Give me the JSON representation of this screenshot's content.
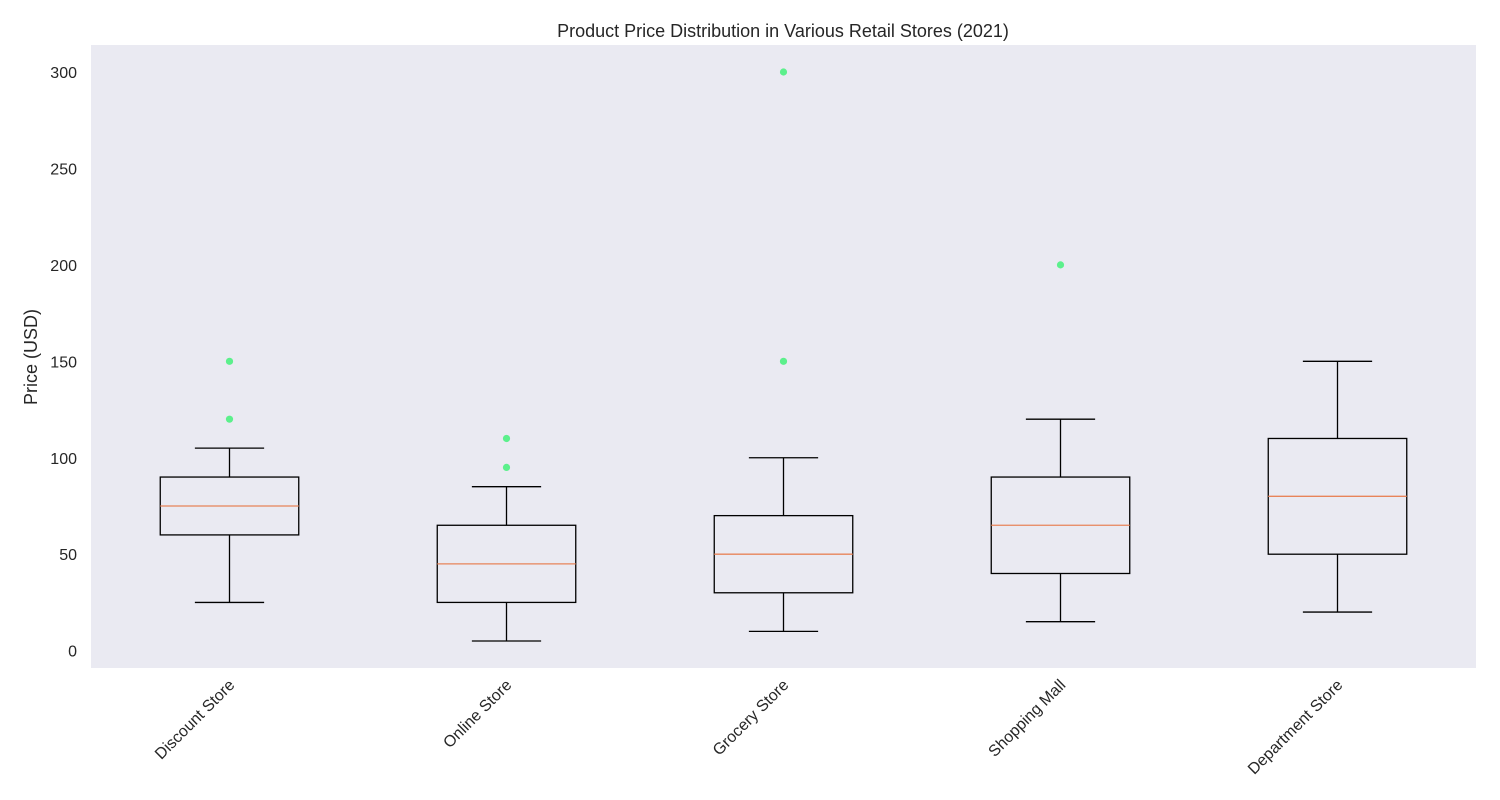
{
  "colors": {
    "plot_background": "#eaeaf2",
    "box_edge": "#000000",
    "median": "#e8845a",
    "outlier": "#5cf08c",
    "text": "#262626"
  },
  "chart_data": {
    "type": "box",
    "title": "Product Price Distribution in Various Retail Stores (2021)",
    "xlabel": "",
    "ylabel": "Price (USD)",
    "ylim": [
      -9,
      314
    ],
    "yticks": [
      0,
      50,
      100,
      150,
      200,
      250,
      300
    ],
    "grid": false,
    "legend": "none",
    "categories": [
      "Discount Store",
      "Online Store",
      "Grocery Store",
      "Shopping Mall",
      "Department Store"
    ],
    "boxes": [
      {
        "category": "Discount Store",
        "whisker_low": 25,
        "q1": 60,
        "median": 75,
        "q3": 90,
        "whisker_high": 105,
        "outliers": [
          120,
          150
        ]
      },
      {
        "category": "Online Store",
        "whisker_low": 5,
        "q1": 25,
        "median": 45,
        "q3": 65,
        "whisker_high": 85,
        "outliers": [
          95,
          110
        ]
      },
      {
        "category": "Grocery Store",
        "whisker_low": 10,
        "q1": 30,
        "median": 50,
        "q3": 70,
        "whisker_high": 100,
        "outliers": [
          150,
          300
        ]
      },
      {
        "category": "Shopping Mall",
        "whisker_low": 15,
        "q1": 40,
        "median": 65,
        "q3": 90,
        "whisker_high": 120,
        "outliers": [
          200
        ]
      },
      {
        "category": "Department Store",
        "whisker_low": 20,
        "q1": 50,
        "median": 80,
        "q3": 110,
        "whisker_high": 150,
        "outliers": []
      }
    ]
  }
}
